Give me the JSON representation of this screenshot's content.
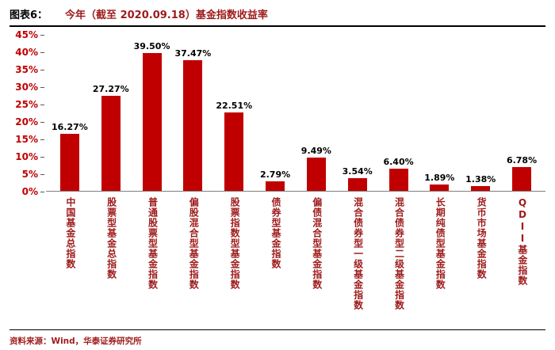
{
  "header": {
    "tag": "图表6：",
    "title": "今年（截至 2020.09.18）基金指数收益率"
  },
  "chart_data": {
    "type": "bar",
    "title": "今年（截至 2020.09.18）基金指数收益率",
    "categories": [
      "中国基金总指数",
      "股票型基金总指数",
      "普通股票型基金指数",
      "偏股混合型基金指数",
      "股票指数型基金指数",
      "债券型基金指数",
      "偏债混合型基金指数",
      "混合债券型一级基金指数",
      "混合债券型二级基金指数",
      "长期纯债型基金指数",
      "货币市场基金指数",
      "QDII基金指数"
    ],
    "values": [
      16.27,
      27.27,
      39.5,
      37.47,
      22.51,
      2.79,
      9.49,
      3.54,
      6.4,
      1.89,
      1.38,
      6.78
    ],
    "value_labels": [
      "16.27%",
      "27.27%",
      "39.50%",
      "37.47%",
      "22.51%",
      "2.79%",
      "9.49%",
      "3.54%",
      "6.40%",
      "1.89%",
      "1.38%",
      "6.78%"
    ],
    "xlabel": "",
    "ylabel": "",
    "ylim": [
      0,
      45
    ],
    "ytick_step": 5,
    "ytick_labels": [
      "0%",
      "5%",
      "10%",
      "15%",
      "20%",
      "25%",
      "30%",
      "35%",
      "40%",
      "45%"
    ],
    "grid": false,
    "legend": false,
    "colors": {
      "bar": "#C00000",
      "text_red": "#9E1B1B",
      "value_label": "#000000",
      "axis_line": "#7f7f7f"
    }
  },
  "footer": {
    "source": "资料来源：Wind，华泰证券研究所"
  }
}
